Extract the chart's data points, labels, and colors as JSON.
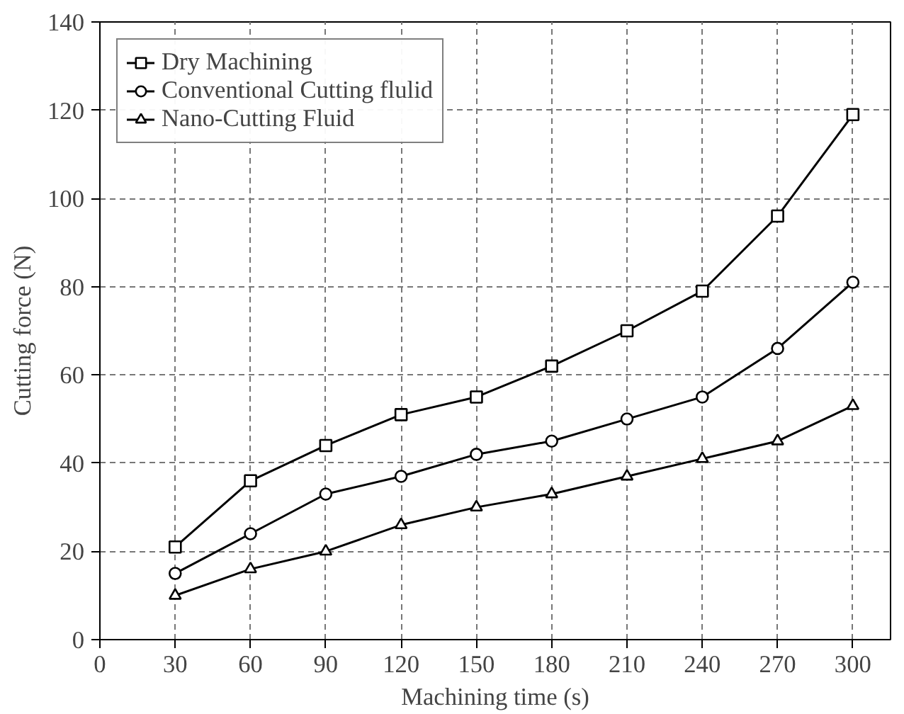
{
  "chart_data": {
    "type": "line",
    "xlabel": "Machining time (s)",
    "ylabel": "Cutting force (N)",
    "x": [
      30,
      60,
      90,
      120,
      150,
      180,
      210,
      240,
      270,
      300
    ],
    "series": [
      {
        "name": "Dry Machining",
        "color": "#000000",
        "marker": "square",
        "values": [
          21,
          36,
          44,
          51,
          55,
          62,
          70,
          79,
          96,
          119
        ]
      },
      {
        "name": "Conventional Cutting flulid",
        "color": "#000000",
        "marker": "circle",
        "values": [
          15,
          24,
          33,
          37,
          42,
          45,
          50,
          55,
          66,
          81
        ]
      },
      {
        "name": "Nano-Cutting Fluid",
        "color": "#000000",
        "marker": "triangle",
        "values": [
          10,
          16,
          20,
          26,
          30,
          33,
          37,
          41,
          45,
          53
        ]
      }
    ],
    "xlim": [
      0,
      315
    ],
    "xticks": [
      0,
      30,
      60,
      90,
      120,
      150,
      180,
      210,
      240,
      270,
      300
    ],
    "ylim": [
      0,
      140
    ],
    "yticks": [
      0,
      20,
      40,
      60,
      80,
      100,
      120,
      140
    ],
    "grid": true,
    "legend": "top left",
    "line_style": "solid"
  }
}
